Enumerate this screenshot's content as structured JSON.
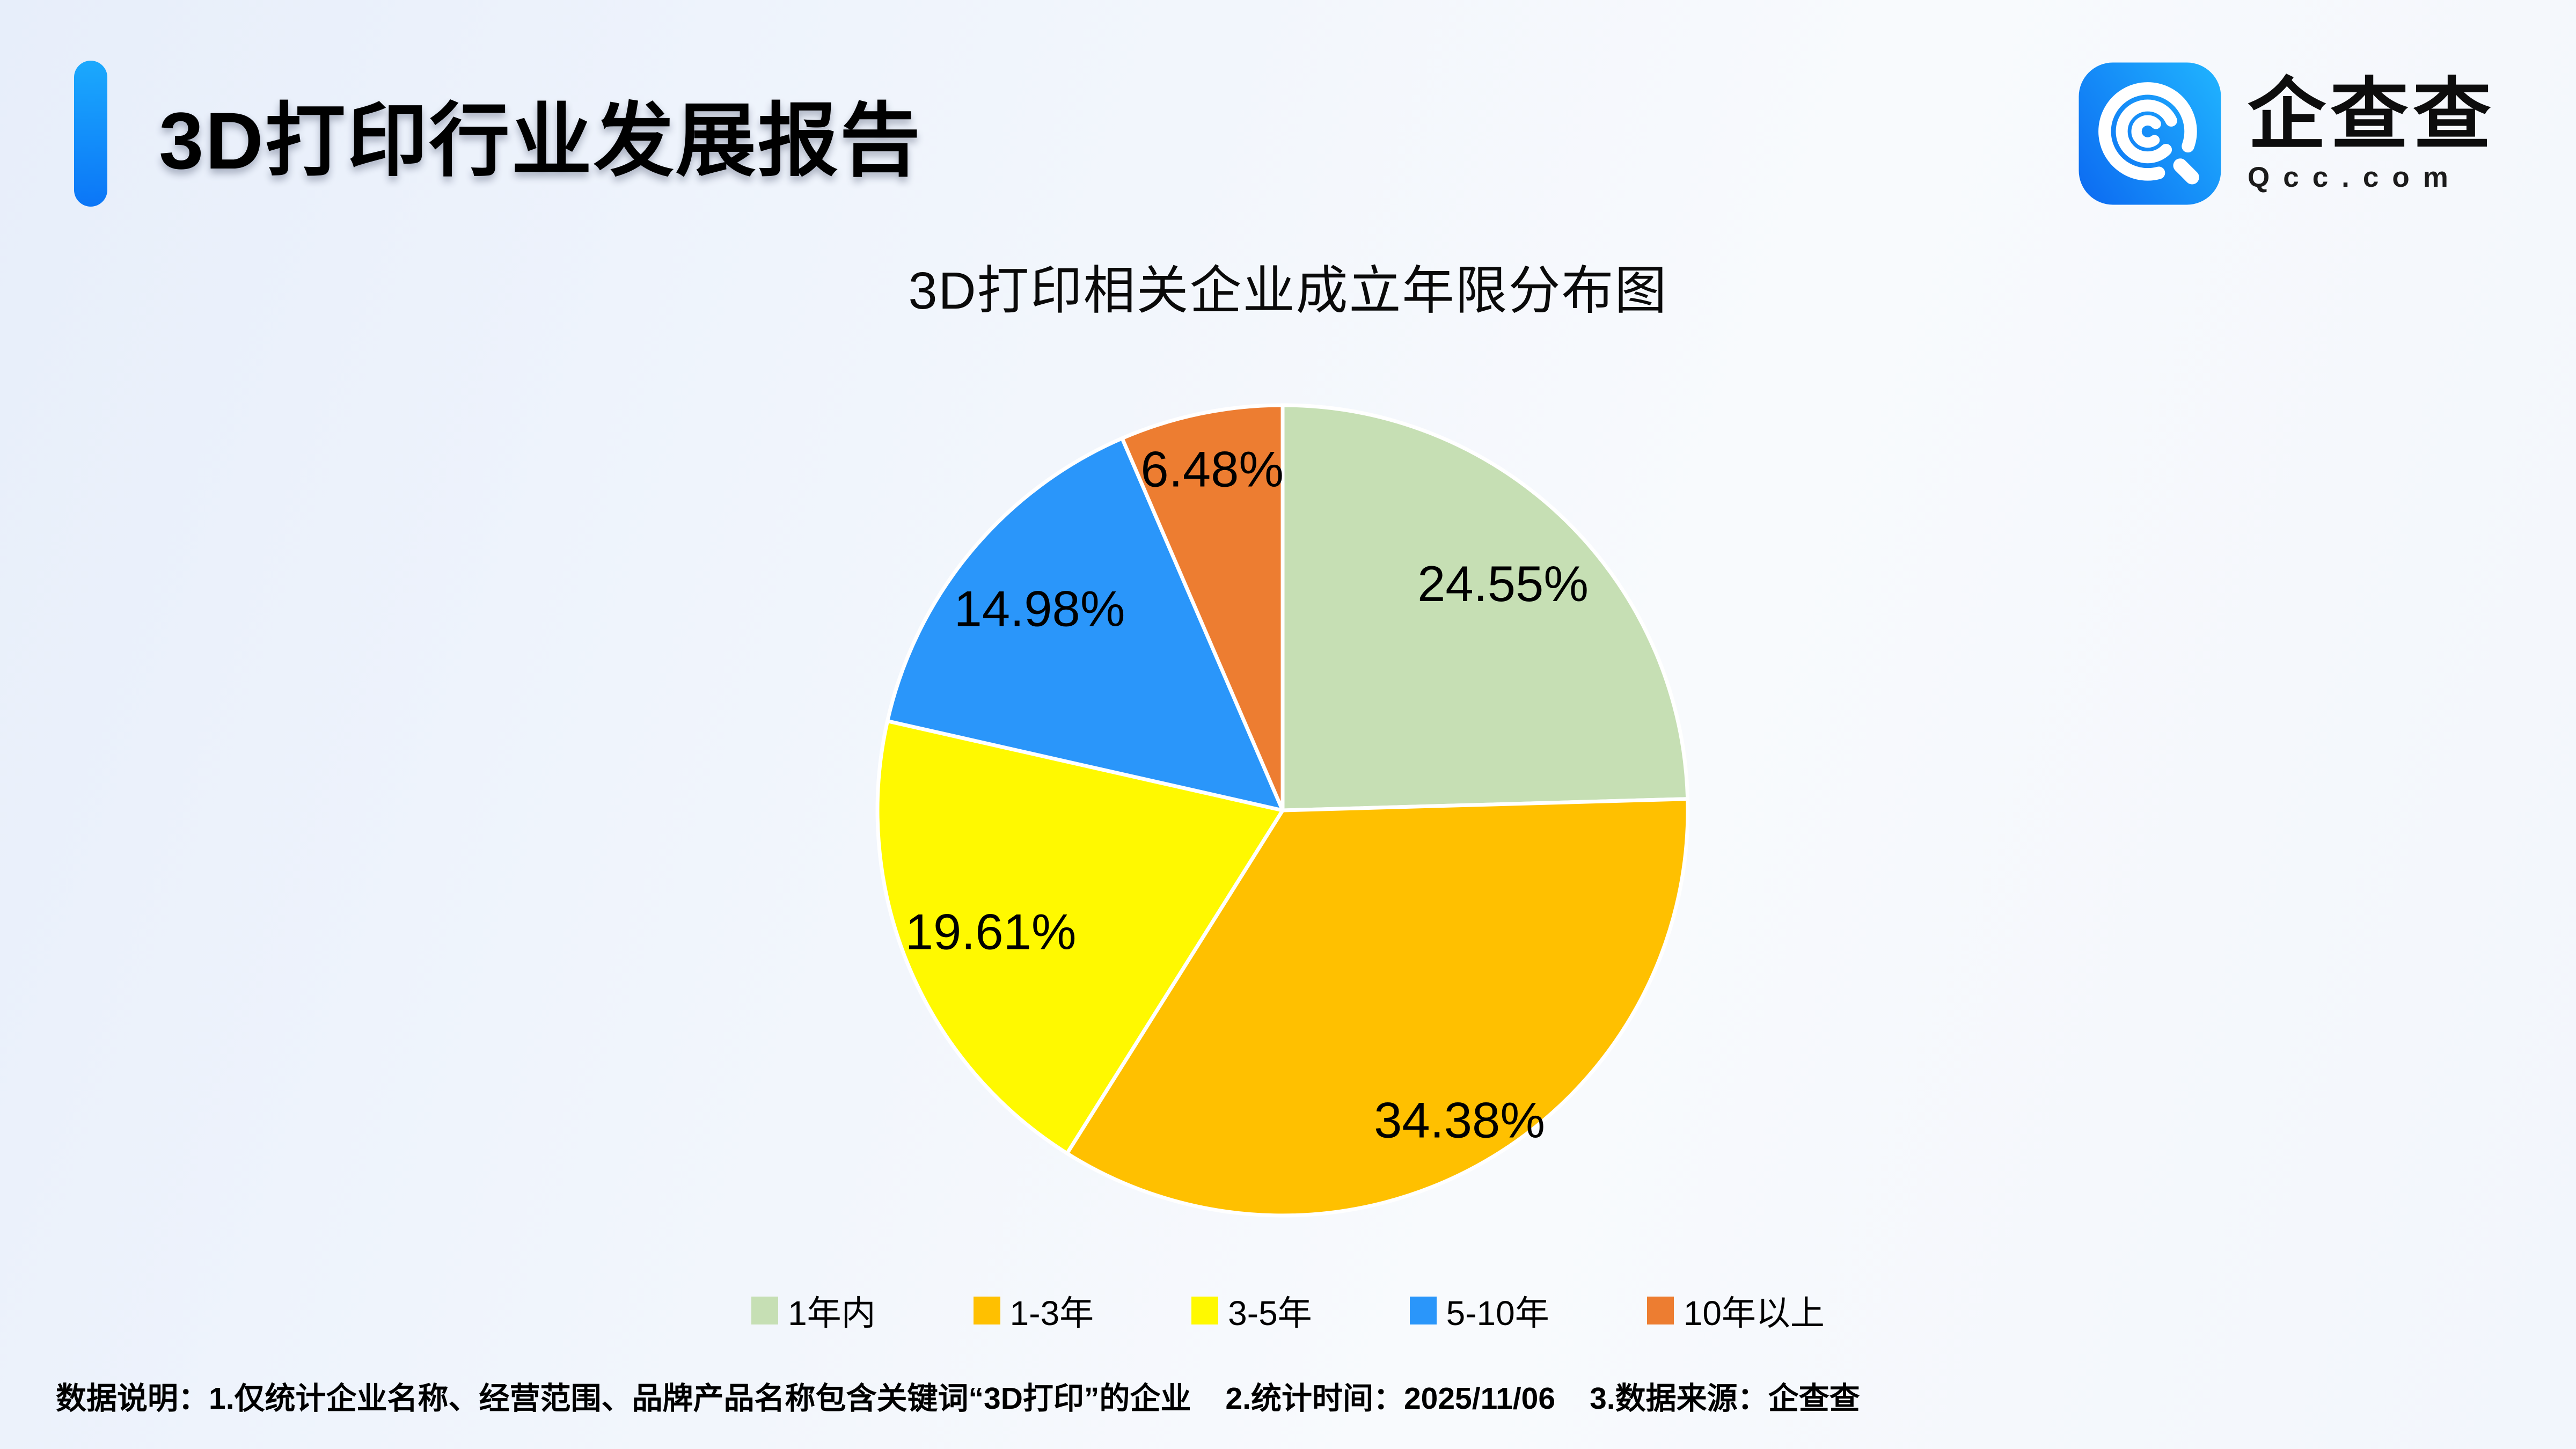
{
  "header": {
    "title": "3D打印行业发展报告"
  },
  "logo": {
    "brand_name": "企查查",
    "brand_domain": "Qcc.com",
    "icon": "qcc-magnifier-spiral-icon",
    "icon_color_top": "#1FB0FE",
    "icon_color_bottom": "#0D6EF2"
  },
  "page": {
    "accent_color_top": "#1BA9FD",
    "accent_color_bottom": "#0B76F7",
    "background_left": "#E7EEFA",
    "background_right": "#F8FAFD"
  },
  "chart_data": {
    "type": "pie",
    "title": "3D打印相关企业成立年限分布图",
    "categories": [
      "1年内",
      "1-3年",
      "3-5年",
      "5-10年",
      "10年以上"
    ],
    "values": [
      24.55,
      34.38,
      19.61,
      14.98,
      6.48
    ],
    "labels": [
      "24.55%",
      "34.38%",
      "19.61%",
      "14.98%",
      "6.48%"
    ],
    "unit": "%",
    "colors": [
      "#C6DFB4",
      "#FFC000",
      "#FFF900",
      "#2A96FA",
      "#ED7D31"
    ],
    "start_angle_deg": 0,
    "direction": "clockwise",
    "legend_position": "bottom",
    "label_color": "#000000",
    "slice_border_color": "#FFFFFF"
  },
  "footnote": {
    "parts": [
      "数据说明：1.仅统计企业名称、经营范围、品牌产品名称包含关键词“3D打印”的企业",
      "2.统计时间：2025/11/06",
      "3.数据来源：企查查"
    ]
  }
}
